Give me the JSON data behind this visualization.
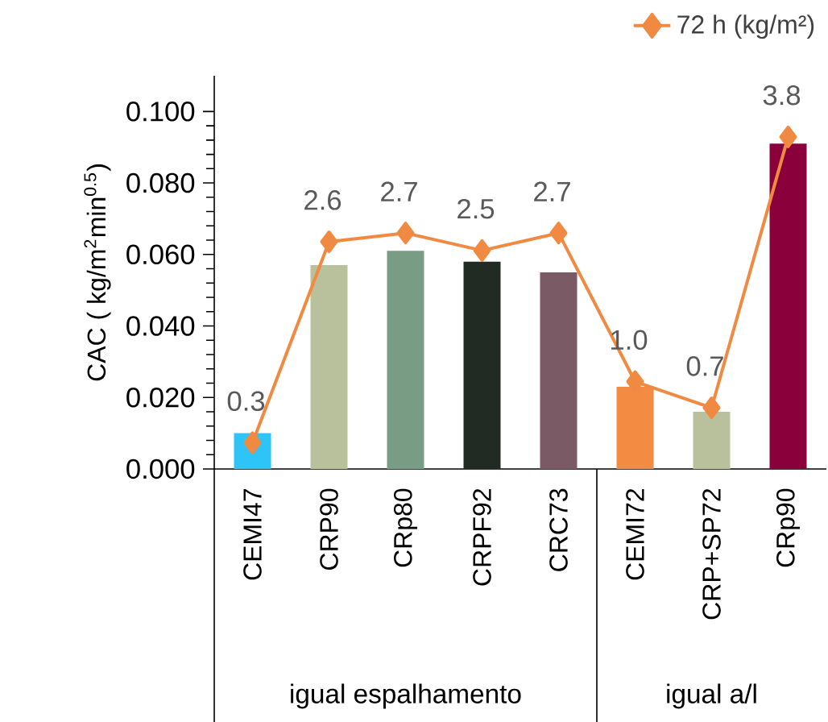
{
  "chart_data": {
    "type": "bar",
    "ylabel": "CAC ( kg/m$^{2}$min$^{0.5}$)",
    "categories": [
      "CEMI47",
      "CRP90",
      "CRp80",
      "CRPF92",
      "CRC73",
      "CEMI72",
      "CRP+SP72",
      "CRp90"
    ],
    "series": [
      {
        "colors": [
          "#2ec4f8",
          "#b8c09c",
          "#799c84",
          "#222a24",
          "#7a5a64",
          "#f48b42",
          "#b8c09c",
          "#8a003a"
        ],
        "values": [
          0.01,
          0.057,
          0.061,
          0.058,
          0.055,
          0.023,
          0.016,
          0.091
        ]
      },
      {
        "type": "line",
        "name": "72 h (kg/m²)",
        "color": "#f08a42",
        "axis": "y2",
        "marker": "diamond",
        "values": [
          0.3,
          2.6,
          2.7,
          2.5,
          2.7,
          1.0,
          0.7,
          3.8
        ],
        "value_labels": [
          "0.3",
          "2.6",
          "2.7",
          "2.5",
          "2.7",
          "1.0",
          "0.7",
          "3.8"
        ]
      }
    ],
    "ylim": [
      0,
      0.11
    ],
    "yticks": [
      {
        "value": 0,
        "label": "0.000"
      },
      {
        "value": 0.02,
        "label": "0.020"
      },
      {
        "value": 0.04,
        "label": "0.040"
      },
      {
        "value": 0.06,
        "label": "0.060"
      },
      {
        "value": 0.08,
        "label": "0.080"
      },
      {
        "value": 0.1,
        "label": "0.100"
      }
    ],
    "y2lim": [
      0,
      4.5
    ],
    "legend": "top right",
    "grid": false,
    "annotations": [
      "igual espalhamento",
      "igual a/l"
    ]
  }
}
